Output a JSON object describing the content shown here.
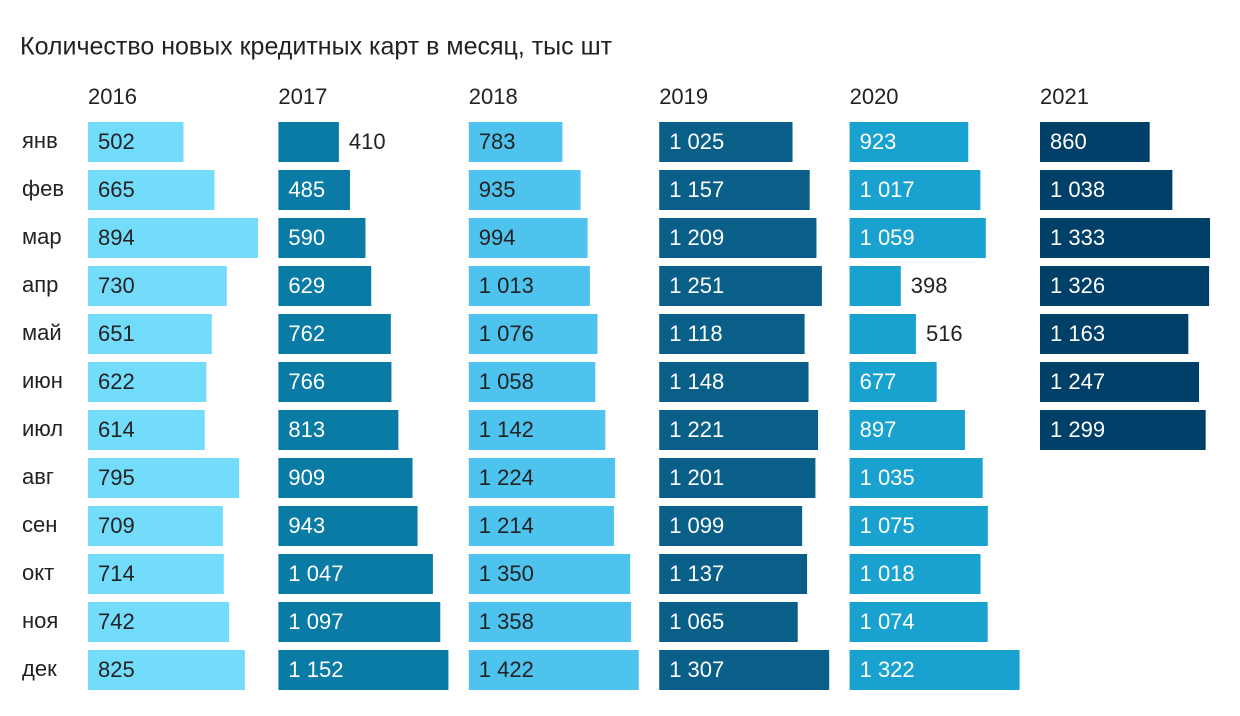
{
  "chart_data": {
    "type": "bar",
    "orientation": "horizontal",
    "title": "Количество новых кредитных карт в месяц, тыс шт",
    "categories": [
      "янв",
      "фев",
      "мар",
      "апр",
      "май",
      "июн",
      "июл",
      "авг",
      "сен",
      "окт",
      "ноя",
      "дек"
    ],
    "series": [
      {
        "name": "2016",
        "color": "#73dcfb",
        "label_color": "#222222",
        "values": [
          502,
          665,
          894,
          730,
          651,
          622,
          614,
          795,
          709,
          714,
          742,
          825
        ],
        "value_labels": [
          "502",
          "665",
          "894",
          "730",
          "651",
          "622",
          "614",
          "795",
          "709",
          "714",
          "742",
          "825"
        ]
      },
      {
        "name": "2017",
        "color": "#0a7ba4",
        "label_color": "#ffffff",
        "values": [
          410,
          485,
          590,
          629,
          762,
          766,
          813,
          909,
          943,
          1047,
          1097,
          1152
        ],
        "value_labels": [
          "410",
          "485",
          "590",
          "629",
          "762",
          "766",
          "813",
          "909",
          "943",
          "1 047",
          "1 097",
          "1 152"
        ]
      },
      {
        "name": "2018",
        "color": "#4ec3ee",
        "label_color": "#222222",
        "values": [
          783,
          935,
          994,
          1013,
          1076,
          1058,
          1142,
          1224,
          1214,
          1350,
          1358,
          1422
        ],
        "value_labels": [
          "783",
          "935",
          "994",
          "1 013",
          "1 076",
          "1 058",
          "1 142",
          "1 224",
          "1 214",
          "1 350",
          "1 358",
          "1 422"
        ]
      },
      {
        "name": "2019",
        "color": "#095f88",
        "label_color": "#ffffff",
        "values": [
          1025,
          1157,
          1209,
          1251,
          1118,
          1148,
          1221,
          1201,
          1099,
          1137,
          1065,
          1307
        ],
        "value_labels": [
          "1 025",
          "1 157",
          "1 209",
          "1 251",
          "1 118",
          "1 148",
          "1 221",
          "1 201",
          "1 099",
          "1 137",
          "1 065",
          "1 307"
        ]
      },
      {
        "name": "2020",
        "color": "#19a2d0",
        "label_color": "#ffffff",
        "values": [
          923,
          1017,
          1059,
          398,
          516,
          677,
          897,
          1035,
          1075,
          1018,
          1074,
          1322
        ],
        "value_labels": [
          "923",
          "1 017",
          "1 059",
          "398",
          "516",
          "677",
          "897",
          "1 035",
          "1 075",
          "1 018",
          "1 074",
          "1 322"
        ]
      },
      {
        "name": "2021",
        "color": "#003f67",
        "label_color": "#ffffff",
        "values": [
          860,
          1038,
          1333,
          1326,
          1163,
          1247,
          1299,
          null,
          null,
          null,
          null,
          null
        ],
        "value_labels": [
          "860",
          "1 038",
          "1 333",
          "1 326",
          "1 163",
          "1 247",
          "1 299",
          null,
          null,
          null,
          null,
          null
        ]
      }
    ]
  }
}
